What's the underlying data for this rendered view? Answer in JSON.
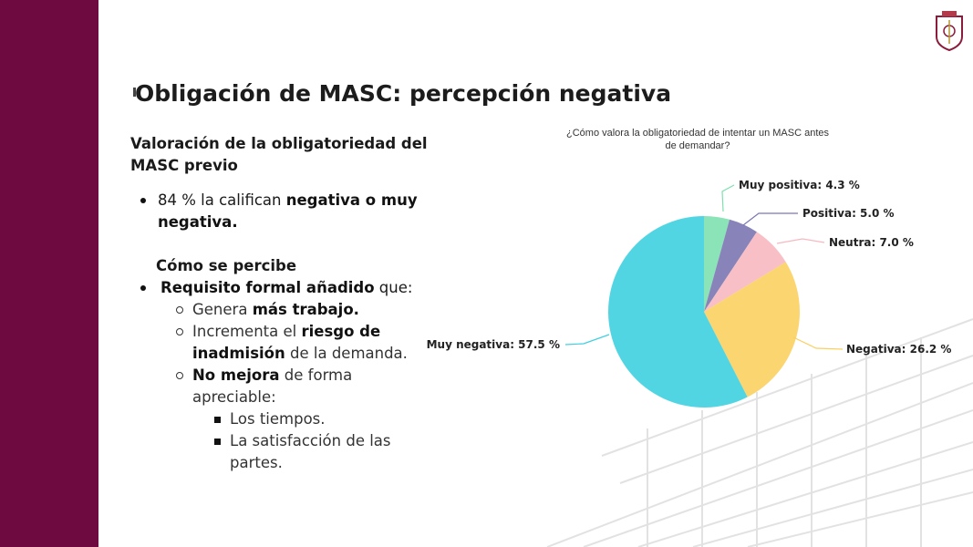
{
  "slide": {
    "title": "Obligación de MASC: percepción negativa",
    "brand_color": "#6e0a3f"
  },
  "content": {
    "heading": "Valoración de la obligatoriedad del MASC previo",
    "bullet1_pre": "84 % la califican ",
    "bullet1_bold": "negativa o muy negativa.",
    "sub_heading": "Cómo se percibe",
    "bullet2_bold": "Requisito formal añadido",
    "bullet2_post": " que:",
    "item1_pre": "Genera ",
    "item1_bold": "más trabajo.",
    "item2_pre": "Incrementa el ",
    "item2_bold": "riesgo de inadmisión",
    "item2_post": " de la demanda.",
    "item3_bold": "No mejora",
    "item3_post": " de forma apreciable:",
    "sub1": "Los tiempos.",
    "sub2": "La satisfacción de las partes."
  },
  "chart_data": {
    "type": "pie",
    "title": "¿Cómo valora la obligatoriedad de intentar un MASC antes de demandar?",
    "slices": [
      {
        "label": "Muy positiva",
        "value": 4.3,
        "display": "Muy positiva: 4.3 %",
        "color": "#7ee0b0"
      },
      {
        "label": "Positiva",
        "value": 5.0,
        "display": "Positiva: 5.0 %",
        "color": "#7b77b3"
      },
      {
        "label": "Neutra",
        "value": 7.0,
        "display": "Neutra: 7.0 %",
        "color": "#f7b8c0"
      },
      {
        "label": "Negativa",
        "value": 26.2,
        "display": "Negativa: 26.2 %",
        "color": "#fbd060"
      },
      {
        "label": "Muy negativa",
        "value": 57.5,
        "display": "Muy negativa: 57.5 %",
        "color": "#3fd0e0"
      }
    ]
  }
}
